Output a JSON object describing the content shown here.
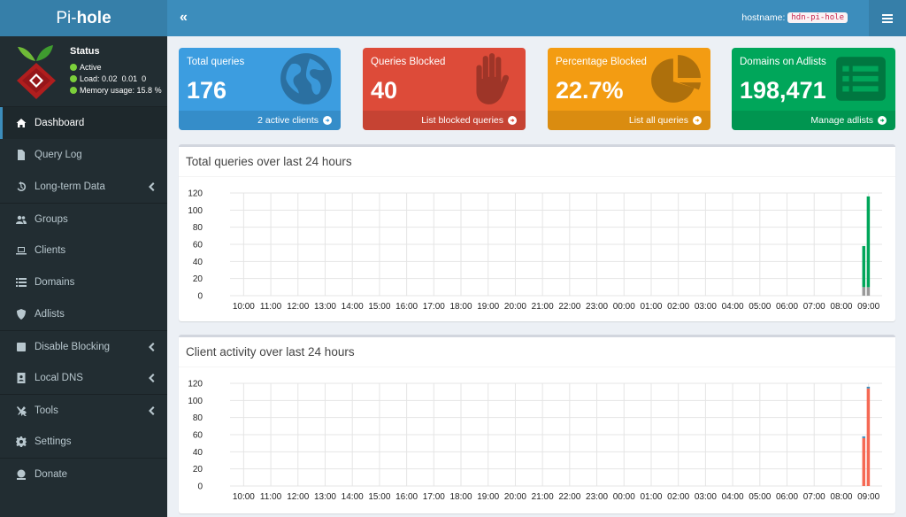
{
  "brand": {
    "prefix": "Pi-",
    "name": "hole"
  },
  "status": {
    "title": "Status",
    "active_label": "Active",
    "load_label": "Load:",
    "load_values": "0.02  0.01  0",
    "memory_label": "Memory usage:",
    "memory_value": "15.8 %"
  },
  "topbar": {
    "collapse_glyph": "«",
    "hostname_label": "hostname:",
    "hostname_value": "hdn-pi-hole"
  },
  "nav": [
    {
      "label": "Dashboard",
      "icon": "home-icon"
    },
    {
      "label": "Query Log",
      "icon": "file-icon"
    },
    {
      "label": "Long-term Data",
      "icon": "history-icon"
    },
    {
      "label": "Groups",
      "icon": "users-icon"
    },
    {
      "label": "Clients",
      "icon": "laptop-icon"
    },
    {
      "label": "Domains",
      "icon": "list-icon"
    },
    {
      "label": "Adlists",
      "icon": "shield-icon"
    },
    {
      "label": "Disable Blocking",
      "icon": "stop-icon"
    },
    {
      "label": "Local DNS",
      "icon": "address-book-icon"
    },
    {
      "label": "Tools",
      "icon": "tools-icon"
    },
    {
      "label": "Settings",
      "icon": "gear-icon"
    },
    {
      "label": "Donate",
      "icon": "donate-icon"
    }
  ],
  "stats": [
    {
      "title": "Total queries",
      "value": "176",
      "footer": "2 active clients",
      "color": "#3c9de0",
      "icon": "globe-icon"
    },
    {
      "title": "Queries Blocked",
      "value": "40",
      "footer": "List blocked queries",
      "color": "#dd4b39",
      "icon": "hand-icon"
    },
    {
      "title": "Percentage Blocked",
      "value": "22.7%",
      "footer": "List all queries",
      "color": "#f39c12",
      "icon": "pie-chart-icon"
    },
    {
      "title": "Domains on Adlists",
      "value": "198,471",
      "footer": "Manage adlists",
      "color": "#00a65a",
      "icon": "list-alt-icon"
    }
  ],
  "chart_data": [
    {
      "type": "bar",
      "title": "Total queries over last 24 hours",
      "x_ticks": [
        "10:00",
        "11:00",
        "12:00",
        "13:00",
        "14:00",
        "15:00",
        "16:00",
        "17:00",
        "18:00",
        "19:00",
        "20:00",
        "21:00",
        "22:00",
        "23:00",
        "00:00",
        "01:00",
        "02:00",
        "03:00",
        "04:00",
        "05:00",
        "06:00",
        "07:00",
        "08:00",
        "09:00"
      ],
      "y_ticks": [
        0,
        20,
        40,
        60,
        80,
        100,
        120
      ],
      "ylim": [
        0,
        120
      ],
      "stacked": true,
      "series": [
        {
          "color": "#999999",
          "values": [
            {
              "x": "08:50",
              "y": 10
            },
            {
              "x": "09:00",
              "y": 10
            }
          ]
        },
        {
          "color": "#00a65a",
          "values": [
            {
              "x": "08:50",
              "y": 48
            },
            {
              "x": "09:00",
              "y": 106
            }
          ]
        }
      ]
    },
    {
      "type": "bar",
      "title": "Client activity over last 24 hours",
      "x_ticks": [
        "10:00",
        "11:00",
        "12:00",
        "13:00",
        "14:00",
        "15:00",
        "16:00",
        "17:00",
        "18:00",
        "19:00",
        "20:00",
        "21:00",
        "22:00",
        "23:00",
        "00:00",
        "01:00",
        "02:00",
        "03:00",
        "04:00",
        "05:00",
        "06:00",
        "07:00",
        "08:00",
        "09:00"
      ],
      "y_ticks": [
        0,
        20,
        40,
        60,
        80,
        100,
        120
      ],
      "ylim": [
        0,
        120
      ],
      "stacked": true,
      "series": [
        {
          "color": "#f56954",
          "values": [
            {
              "x": "08:50",
              "y": 56
            },
            {
              "x": "09:00",
              "y": 114
            }
          ]
        },
        {
          "color": "#3c8dbc",
          "values": [
            {
              "x": "08:50",
              "y": 2
            },
            {
              "x": "09:00",
              "y": 2
            }
          ]
        }
      ]
    }
  ]
}
